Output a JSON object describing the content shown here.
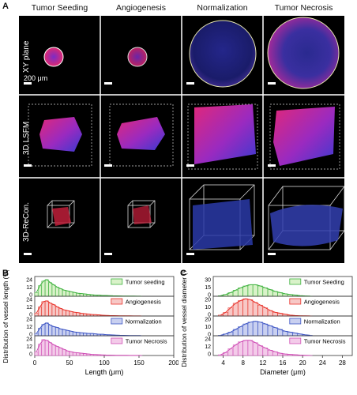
{
  "panelA": {
    "letter": "A",
    "columns": [
      "Tumor Seeding",
      "Angiogenesis",
      "Normalization",
      "Tumor Necrosis"
    ],
    "rows": [
      "XY plane",
      "3D LSFM",
      "3D-ReCon."
    ],
    "scale_label": "200 μm"
  },
  "chartB": {
    "letter": "B",
    "ylabel": "Distribution of vessel length (%)",
    "xlabel": "Length (μm)",
    "xticks": [
      "0",
      "50",
      "100",
      "150",
      "200"
    ],
    "chart_data": {
      "type": "bar",
      "xlim": [
        0,
        200
      ],
      "bin_width": 5,
      "bin_starts": [
        0,
        5,
        10,
        15,
        20,
        25,
        30,
        35,
        40,
        45,
        50,
        55,
        60,
        65,
        70,
        75,
        80,
        85,
        90,
        95,
        100,
        105,
        110,
        115,
        120,
        125,
        130,
        135,
        140,
        145,
        150
      ],
      "series": [
        {
          "name": "Tumor seeding",
          "color": "#3fb23f",
          "fill": "#d9f2c9",
          "yticks": [
            "24",
            "12",
            "0"
          ],
          "values": [
            5,
            14,
            20,
            22,
            18,
            15,
            12,
            10,
            8,
            7,
            6,
            5,
            4,
            3.5,
            3,
            2.5,
            2,
            1.5,
            1.5,
            1,
            1,
            0.8,
            0.6,
            0.5,
            0.4,
            0.3,
            0.3,
            0.2,
            0.2,
            0.1,
            0.1
          ]
        },
        {
          "name": "Angiogenesis",
          "color": "#e8332b",
          "fill": "#f7c8c6",
          "yticks": [
            "24",
            "12",
            "0"
          ],
          "values": [
            4,
            12,
            19,
            20,
            17,
            15,
            12,
            10,
            8,
            7,
            6,
            5,
            4.5,
            3.5,
            3,
            2.5,
            2,
            1.8,
            1.5,
            1,
            0.8,
            0.6,
            0.5,
            0.4,
            0.3,
            0.3,
            0.2,
            0.2,
            0.1,
            0.1,
            0.1
          ]
        },
        {
          "name": "Normalization",
          "color": "#3d55c4",
          "fill": "#c9d0f0",
          "yticks": [
            "24",
            "12",
            "0"
          ],
          "values": [
            3,
            10,
            15,
            17,
            14,
            12,
            11,
            9,
            8,
            7,
            6,
            5,
            4.5,
            4,
            3.5,
            3,
            3,
            2.5,
            2,
            2,
            1.5,
            1.2,
            1,
            0.8,
            0.6,
            0.5,
            0.4,
            0.3,
            0.3,
            0.2,
            0.2
          ]
        },
        {
          "name": "Tumor Necrosis",
          "color": "#d04fb6",
          "fill": "#f3cbe9",
          "yticks": [
            "24",
            "12",
            "0"
          ],
          "values": [
            5,
            15,
            21,
            20,
            17,
            14,
            12,
            10,
            8,
            6,
            5,
            4,
            3.5,
            3,
            2.5,
            2,
            1.5,
            1.2,
            1,
            0.8,
            0.6,
            0.5,
            0.4,
            0.3,
            0.3,
            0.2,
            0.2,
            0.1,
            0.1,
            0.1,
            0.1
          ]
        }
      ]
    }
  },
  "chartC": {
    "letter": "C",
    "ylabel": "Distribution of vessel diameter (%)",
    "xlabel": "Diameter (μm)",
    "xticks": [
      "4",
      "8",
      "12",
      "16",
      "20",
      "24",
      "28"
    ],
    "chart_data": {
      "type": "bar",
      "xlim": [
        2,
        30
      ],
      "bin_width": 1,
      "bin_starts": [
        3,
        4,
        5,
        6,
        7,
        8,
        9,
        10,
        11,
        12,
        13,
        14,
        15,
        16,
        17,
        18,
        19,
        20,
        21
      ],
      "series": [
        {
          "name": "Tumor Seeding",
          "color": "#3fb23f",
          "fill": "#d9f2c9",
          "yticks": [
            "30",
            "15",
            "0"
          ],
          "values": [
            1,
            3,
            6,
            10,
            14,
            17,
            19,
            19,
            17,
            14,
            11,
            8,
            6,
            4,
            3,
            2,
            1,
            0.5,
            0.3
          ]
        },
        {
          "name": "Angiogenesis",
          "color": "#e8332b",
          "fill": "#f7c8c6",
          "yticks": [
            "20",
            "10",
            "0"
          ],
          "values": [
            1,
            4,
            9,
            14,
            17,
            19,
            18,
            15,
            12,
            9,
            6,
            4,
            3,
            2,
            1,
            0.5,
            0.3,
            0.2,
            0.1
          ]
        },
        {
          "name": "Normalization",
          "color": "#3d55c4",
          "fill": "#c9d0f0",
          "yticks": [
            "20",
            "10",
            "0"
          ],
          "values": [
            0.5,
            2,
            4,
            7,
            10,
            13,
            15,
            16,
            15,
            13,
            11,
            9,
            7,
            5,
            4,
            3,
            2,
            1,
            0.5
          ]
        },
        {
          "name": "Tumor Necrosis",
          "color": "#d04fb6",
          "fill": "#f3cbe9",
          "yticks": [
            "24",
            "12",
            "0"
          ],
          "values": [
            1,
            4,
            9,
            14,
            18,
            20,
            20,
            17,
            13,
            10,
            7,
            5,
            3,
            2,
            1.5,
            1,
            0.5,
            0.3,
            0.1
          ]
        }
      ]
    }
  }
}
